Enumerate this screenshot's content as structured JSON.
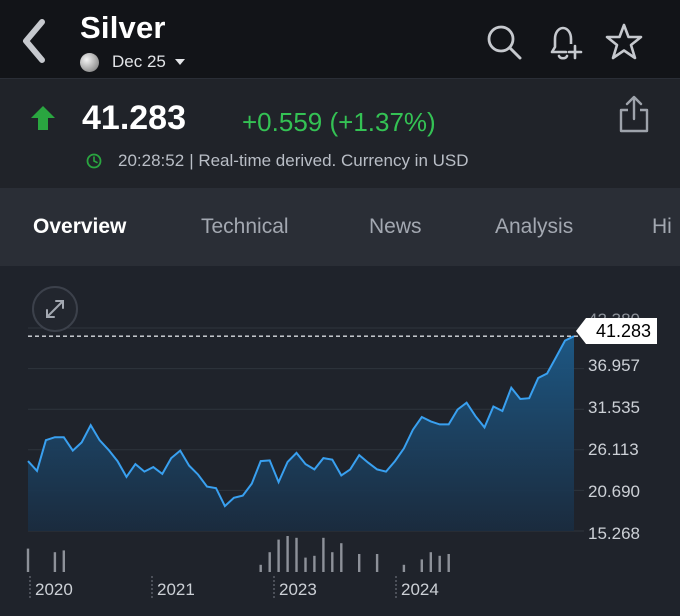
{
  "header": {
    "title": "Silver",
    "contract": "Dec 25",
    "icons": [
      "back-chevron-icon",
      "search-icon",
      "bell-plus-icon",
      "star-icon"
    ]
  },
  "quote": {
    "price": "41.283",
    "change": "+0.559 (+1.37%)",
    "time": "20:28:52",
    "note": "| Real-time derived. Currency in USD",
    "direction": "up",
    "change_color": "#34c254"
  },
  "tabs": [
    "Overview",
    "Technical",
    "News",
    "Analysis",
    "Hi"
  ],
  "active_tab": "Overview",
  "chart": {
    "current_label": "41.283",
    "top_label": "42.380"
  },
  "chart_data": {
    "type": "area",
    "y_ticks": [
      "36.957",
      "31.535",
      "26.113",
      "20.690",
      "15.268"
    ],
    "x_ticks": [
      "2020",
      "2021",
      "2023",
      "2024"
    ],
    "ylim": [
      15.268,
      42.38
    ],
    "last_value": 41.283,
    "series": [
      {
        "values": [
          24.6,
          23.3,
          27.4,
          27.8,
          27.8,
          26.0,
          27.1,
          29.4,
          27.4,
          26.1,
          24.6,
          22.5,
          24.2,
          23.2,
          23.8,
          22.9,
          25.0,
          26.0,
          24.0,
          22.8,
          21.2,
          21.0,
          18.6,
          19.7,
          20.0,
          21.6,
          24.6,
          24.7,
          21.8,
          24.5,
          25.7,
          24.2,
          23.5,
          25.0,
          24.8,
          22.7,
          23.5,
          25.4,
          24.4,
          23.5,
          23.2,
          24.6,
          26.3,
          28.8,
          30.5,
          29.9,
          29.5,
          29.5,
          31.5,
          32.4,
          30.6,
          29.1,
          31.9,
          31.3,
          34.4,
          32.9,
          33.0,
          35.7,
          36.3,
          38.5,
          40.7,
          41.283
        ]
      }
    ],
    "volume": [
      0.65,
      0,
      0,
      0.55,
      0.6,
      0,
      0,
      0,
      0,
      0,
      0,
      0,
      0,
      0,
      0,
      0,
      0,
      0,
      0,
      0,
      0,
      0,
      0,
      0,
      0,
      0,
      0.2,
      0.55,
      0.9,
      1.0,
      0.95,
      0.4,
      0.45,
      0.95,
      0.55,
      0.8,
      0,
      0.5,
      0,
      0.5,
      0,
      0,
      0.2,
      0,
      0.35,
      0.55,
      0.45,
      0.5,
      0,
      0,
      0,
      0,
      0,
      0,
      0,
      0,
      0,
      0,
      0,
      0,
      0,
      0
    ],
    "grid": true,
    "line_color": "#39a0f0",
    "fill_color": "#1b4a70"
  }
}
